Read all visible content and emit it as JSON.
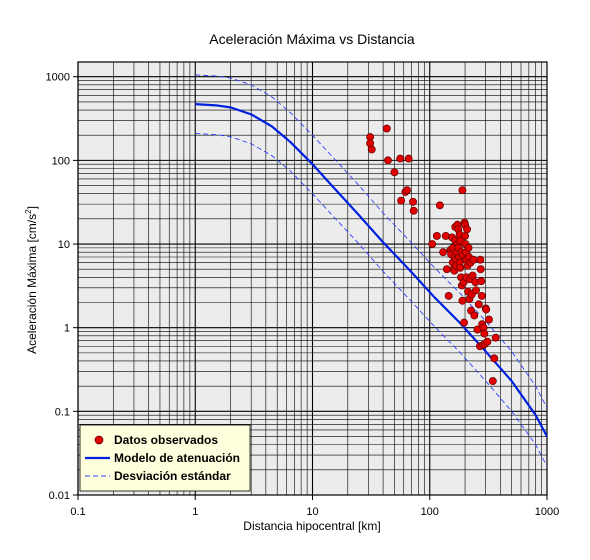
{
  "chart_data": {
    "type": "scatter",
    "title": "Aceleración Máxima vs Distancia",
    "xlabel": "Distancia hipocentral [km]",
    "ylabel_main": "Aceleración Máxima [cm/s",
    "ylabel_sup": "2",
    "ylabel_end": "]",
    "xscale": "log",
    "yscale": "log",
    "xlim": [
      0.1,
      1000
    ],
    "ylim": [
      0.01,
      1500
    ],
    "x_ticks": [
      {
        "value": 0.1,
        "label": "0.1"
      },
      {
        "value": 1,
        "label": "1"
      },
      {
        "value": 10,
        "label": "10"
      },
      {
        "value": 100,
        "label": "100"
      },
      {
        "value": 1000,
        "label": "1000"
      }
    ],
    "y_ticks": [
      {
        "value": 0.01,
        "label": "0.01"
      },
      {
        "value": 0.1,
        "label": "0.1"
      },
      {
        "value": 1,
        "label": "1"
      },
      {
        "value": 10,
        "label": "10"
      },
      {
        "value": 100,
        "label": "100"
      },
      {
        "value": 1000,
        "label": "1000"
      }
    ],
    "grid": true,
    "legend": {
      "position": "bottom-left",
      "entries": [
        {
          "label": "Datos observados",
          "marker": "circle",
          "color": "#e00000"
        },
        {
          "label": "Modelo de atenuación",
          "style": "solid",
          "color": "#0020e0"
        },
        {
          "label": "Desviación estándar",
          "style": "dashed",
          "color": "#3040ff"
        }
      ]
    },
    "series": [
      {
        "name": "Datos observados",
        "type": "scatter",
        "color": "#e00000",
        "points": [
          [
            31,
            190
          ],
          [
            31,
            160
          ],
          [
            32,
            135
          ],
          [
            43,
            240
          ],
          [
            44,
            100
          ],
          [
            50,
            72
          ],
          [
            56,
            105
          ],
          [
            57,
            33
          ],
          [
            62,
            42
          ],
          [
            64,
            44
          ],
          [
            66,
            105
          ],
          [
            72,
            32
          ],
          [
            73,
            25
          ],
          [
            105,
            10
          ],
          [
            115,
            12.5
          ],
          [
            122,
            29
          ],
          [
            130,
            8
          ],
          [
            137,
            12.5
          ],
          [
            140,
            5
          ],
          [
            145,
            2.4
          ],
          [
            150,
            8.5
          ],
          [
            152,
            7.5
          ],
          [
            155,
            12
          ],
          [
            157,
            6
          ],
          [
            158,
            9
          ],
          [
            160,
            5
          ],
          [
            162,
            4.8
          ],
          [
            163,
            7
          ],
          [
            165,
            16
          ],
          [
            165,
            11
          ],
          [
            167,
            6.5
          ],
          [
            168,
            5.5
          ],
          [
            170,
            8
          ],
          [
            172,
            17
          ],
          [
            173,
            10
          ],
          [
            175,
            15
          ],
          [
            176,
            9
          ],
          [
            178,
            7
          ],
          [
            180,
            6
          ],
          [
            180,
            13
          ],
          [
            182,
            5.2
          ],
          [
            183,
            11
          ],
          [
            185,
            4
          ],
          [
            186,
            8
          ],
          [
            188,
            3.2
          ],
          [
            190,
            44
          ],
          [
            190,
            2.1
          ],
          [
            192,
            7.5
          ],
          [
            195,
            3.5
          ],
          [
            196,
            1.15
          ],
          [
            198,
            18
          ],
          [
            200,
            17
          ],
          [
            200,
            12.5
          ],
          [
            202,
            10
          ],
          [
            204,
            8
          ],
          [
            205,
            6.5
          ],
          [
            206,
            4
          ],
          [
            208,
            15
          ],
          [
            210,
            5.5
          ],
          [
            212,
            2.7
          ],
          [
            214,
            9
          ],
          [
            216,
            7
          ],
          [
            218,
            2.2
          ],
          [
            220,
            3.8
          ],
          [
            223,
            6
          ],
          [
            225,
            1.6
          ],
          [
            228,
            2.5
          ],
          [
            232,
            4.2
          ],
          [
            236,
            6.5
          ],
          [
            240,
            1.4
          ],
          [
            245,
            3.5
          ],
          [
            248,
            2.8
          ],
          [
            255,
            0.95
          ],
          [
            262,
            1.9
          ],
          [
            268,
            0.6
          ],
          [
            270,
            6.5
          ],
          [
            272,
            5
          ],
          [
            275,
            3.6
          ],
          [
            278,
            2.4
          ],
          [
            280,
            1.1
          ],
          [
            285,
            0.62
          ],
          [
            288,
            1.0
          ],
          [
            292,
            0.85
          ],
          [
            295,
            0.64
          ],
          [
            300,
            1.7
          ],
          [
            303,
            1.65
          ],
          [
            310,
            0.68
          ],
          [
            320,
            1.25
          ],
          [
            345,
            0.23
          ],
          [
            355,
            0.43
          ],
          [
            365,
            0.76
          ]
        ]
      },
      {
        "name": "Modelo de atenuación",
        "type": "line",
        "style": "solid",
        "color": "#0020e0",
        "points": [
          [
            1,
            470
          ],
          [
            1.5,
            455
          ],
          [
            2,
            430
          ],
          [
            3,
            355
          ],
          [
            4.5,
            255
          ],
          [
            6.5,
            165
          ],
          [
            10,
            90
          ],
          [
            15,
            48
          ],
          [
            25,
            22
          ],
          [
            40,
            10.5
          ],
          [
            70,
            4.6
          ],
          [
            110,
            2.3
          ],
          [
            180,
            1.15
          ],
          [
            300,
            0.52
          ],
          [
            500,
            0.23
          ],
          [
            800,
            0.09
          ],
          [
            1000,
            0.05
          ]
        ]
      },
      {
        "name": "Desviación estándar (superior)",
        "type": "line",
        "style": "dashed",
        "color": "#3040ff",
        "points": [
          [
            1,
            1050
          ],
          [
            1.5,
            1020
          ],
          [
            2,
            965
          ],
          [
            3,
            800
          ],
          [
            4.5,
            575
          ],
          [
            6.5,
            370
          ],
          [
            10,
            200
          ],
          [
            15,
            108
          ],
          [
            25,
            50
          ],
          [
            40,
            23.5
          ],
          [
            70,
            10.3
          ],
          [
            110,
            5.2
          ],
          [
            180,
            2.6
          ],
          [
            300,
            1.2
          ],
          [
            500,
            0.52
          ],
          [
            800,
            0.2
          ],
          [
            1000,
            0.11
          ]
        ]
      },
      {
        "name": "Desviación estándar (inferior)",
        "type": "line",
        "style": "dashed",
        "color": "#3040ff",
        "points": [
          [
            1,
            210
          ],
          [
            1.5,
            203
          ],
          [
            2,
            192
          ],
          [
            3,
            158
          ],
          [
            4.5,
            114
          ],
          [
            6.5,
            74
          ],
          [
            10,
            40
          ],
          [
            15,
            21.5
          ],
          [
            25,
            10
          ],
          [
            40,
            4.7
          ],
          [
            70,
            2.05
          ],
          [
            110,
            1.03
          ],
          [
            180,
            0.51
          ],
          [
            300,
            0.23
          ],
          [
            500,
            0.1
          ],
          [
            800,
            0.04
          ],
          [
            1000,
            0.022
          ]
        ]
      }
    ]
  }
}
